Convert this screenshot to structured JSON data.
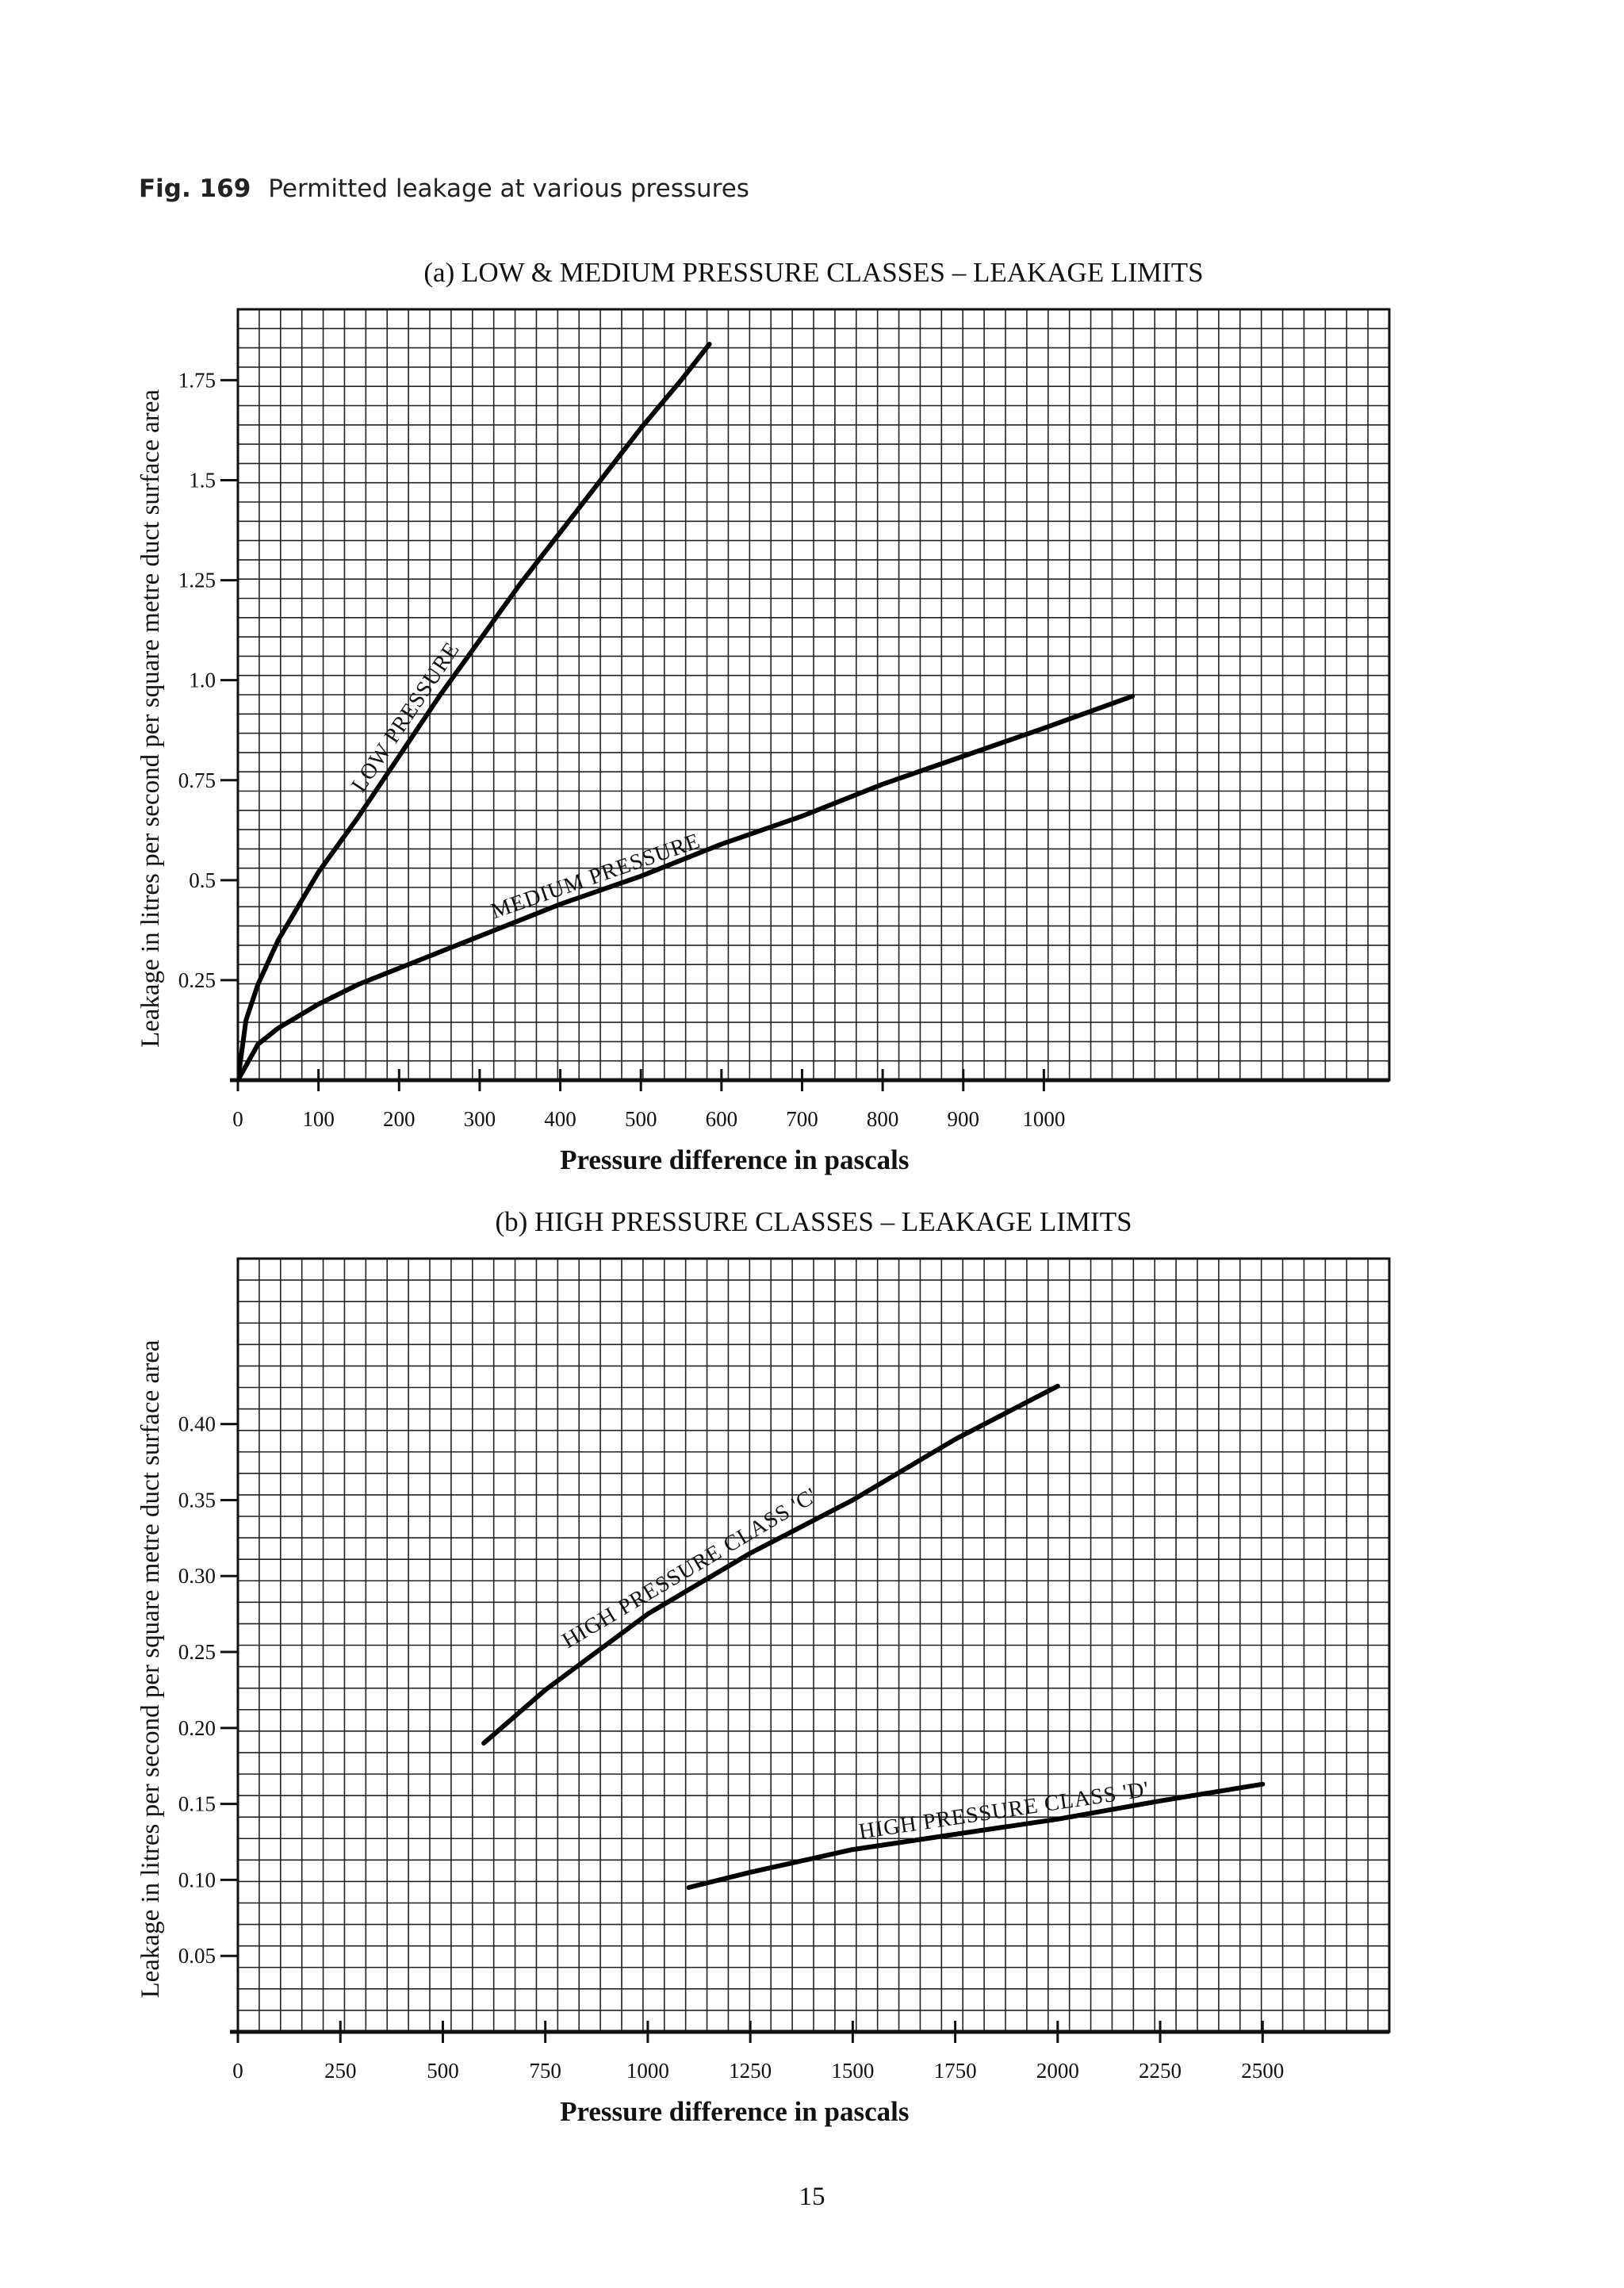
{
  "figure": {
    "number": "Fig. 169",
    "caption": "Permitted leakage at various pressures"
  },
  "page_number": "15",
  "chart_data": [
    {
      "type": "line",
      "title": "(a) LOW & MEDIUM PRESSURE CLASSES – LEAKAGE LIMITS",
      "xlabel": "Pressure difference in pascals",
      "ylabel": "Leakage in litres per second per square metre duct surface area",
      "xlim": [
        0,
        1000
      ],
      "ylim": [
        0,
        1.75
      ],
      "x_ticks": [
        0,
        100,
        200,
        300,
        400,
        500,
        600,
        700,
        800,
        900,
        1000
      ],
      "x_tick_labels": [
        "0",
        "100",
        "200",
        "300",
        "400",
        "500",
        "600",
        "700",
        "800",
        "900",
        "1000"
      ],
      "y_ticks": [
        0.25,
        0.5,
        0.75,
        1.0,
        1.25,
        1.5,
        1.75
      ],
      "y_tick_labels": [
        "0.25",
        "0.5",
        "0.75",
        "1.0",
        "1.25",
        "1.5",
        "1.75"
      ],
      "grid": true,
      "series": [
        {
          "name": "LOW PRESSURE",
          "x": [
            0,
            10,
            25,
            50,
            100,
            150,
            200,
            250,
            300,
            350,
            400,
            450,
            500,
            550,
            585
          ],
          "y": [
            0,
            0.15,
            0.24,
            0.35,
            0.52,
            0.66,
            0.81,
            0.96,
            1.1,
            1.24,
            1.37,
            1.5,
            1.63,
            1.75,
            1.84
          ]
        },
        {
          "name": "MEDIUM PRESSURE",
          "x": [
            0,
            25,
            50,
            100,
            150,
            200,
            300,
            400,
            500,
            600,
            700,
            800,
            900,
            1000,
            1110
          ],
          "y": [
            0,
            0.09,
            0.13,
            0.19,
            0.24,
            0.28,
            0.36,
            0.44,
            0.51,
            0.59,
            0.66,
            0.74,
            0.81,
            0.88,
            0.96
          ]
        }
      ]
    },
    {
      "type": "line",
      "title": "(b) HIGH PRESSURE CLASSES – LEAKAGE LIMITS",
      "xlabel": "Pressure difference in pascals",
      "ylabel": "Leakage in litres per second per square metre duct surface area",
      "xlim": [
        0,
        2500
      ],
      "ylim": [
        0,
        0.4
      ],
      "x_ticks": [
        0,
        250,
        500,
        750,
        1000,
        1250,
        1500,
        1750,
        2000,
        2250,
        2500
      ],
      "x_tick_labels": [
        "0",
        "250",
        "500",
        "750",
        "1000",
        "1250",
        "1500",
        "1750",
        "2000",
        "2250",
        "2500"
      ],
      "y_ticks": [
        0.05,
        0.1,
        0.15,
        0.2,
        0.25,
        0.3,
        0.35,
        0.4
      ],
      "y_tick_labels": [
        "0.05",
        "0.10",
        "0.15",
        "0.20",
        "0.25",
        "0.30",
        "0.35",
        "0.40"
      ],
      "grid": true,
      "series": [
        {
          "name": "HIGH PRESSURE CLASS 'C'",
          "x": [
            600,
            750,
            1000,
            1250,
            1500,
            1750,
            2000
          ],
          "y": [
            0.19,
            0.225,
            0.275,
            0.315,
            0.35,
            0.39,
            0.425
          ]
        },
        {
          "name": "HIGH PRESSURE CLASS 'D'",
          "x": [
            1100,
            1250,
            1500,
            1750,
            2000,
            2250,
            2500
          ],
          "y": [
            0.095,
            0.105,
            0.12,
            0.13,
            0.14,
            0.152,
            0.163
          ]
        }
      ]
    }
  ]
}
